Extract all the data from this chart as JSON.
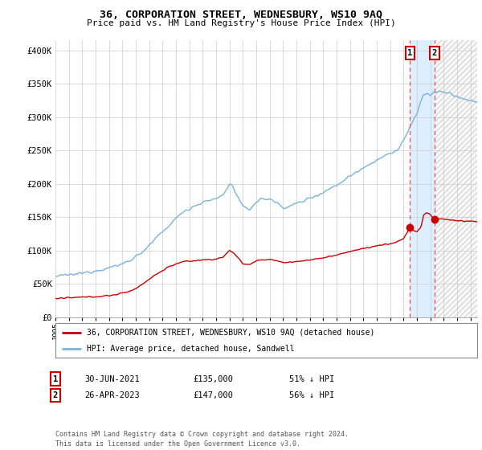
{
  "title": "36, CORPORATION STREET, WEDNESBURY, WS10 9AQ",
  "subtitle": "Price paid vs. HM Land Registry's House Price Index (HPI)",
  "ylabel_ticks": [
    "£0",
    "£50K",
    "£100K",
    "£150K",
    "£200K",
    "£250K",
    "£300K",
    "£350K",
    "£400K"
  ],
  "ytick_vals": [
    0,
    50000,
    100000,
    150000,
    200000,
    250000,
    300000,
    350000,
    400000
  ],
  "ylim": [
    0,
    415000
  ],
  "xlim_start": 1995.0,
  "xlim_end": 2026.5,
  "hpi_color": "#7ab4d8",
  "price_color": "#cc0000",
  "marker_color": "#cc0000",
  "dashed_line_color": "#e05050",
  "shade_color": "#ddeeff",
  "legend_label_price": "36, CORPORATION STREET, WEDNESBURY, WS10 9AQ (detached house)",
  "legend_label_hpi": "HPI: Average price, detached house, Sandwell",
  "annotation1_label": "1",
  "annotation2_label": "2",
  "sale1_date": 2021.49,
  "sale1_price": 135000,
  "sale2_date": 2023.31,
  "sale2_price": 147000,
  "table_row1": [
    "1",
    "30-JUN-2021",
    "£135,000",
    "51% ↓ HPI"
  ],
  "table_row2": [
    "2",
    "26-APR-2023",
    "£147,000",
    "56% ↓ HPI"
  ],
  "footer": "Contains HM Land Registry data © Crown copyright and database right 2024.\nThis data is licensed under the Open Government Licence v3.0.",
  "grid_color": "#cccccc",
  "background_color": "#ffffff"
}
